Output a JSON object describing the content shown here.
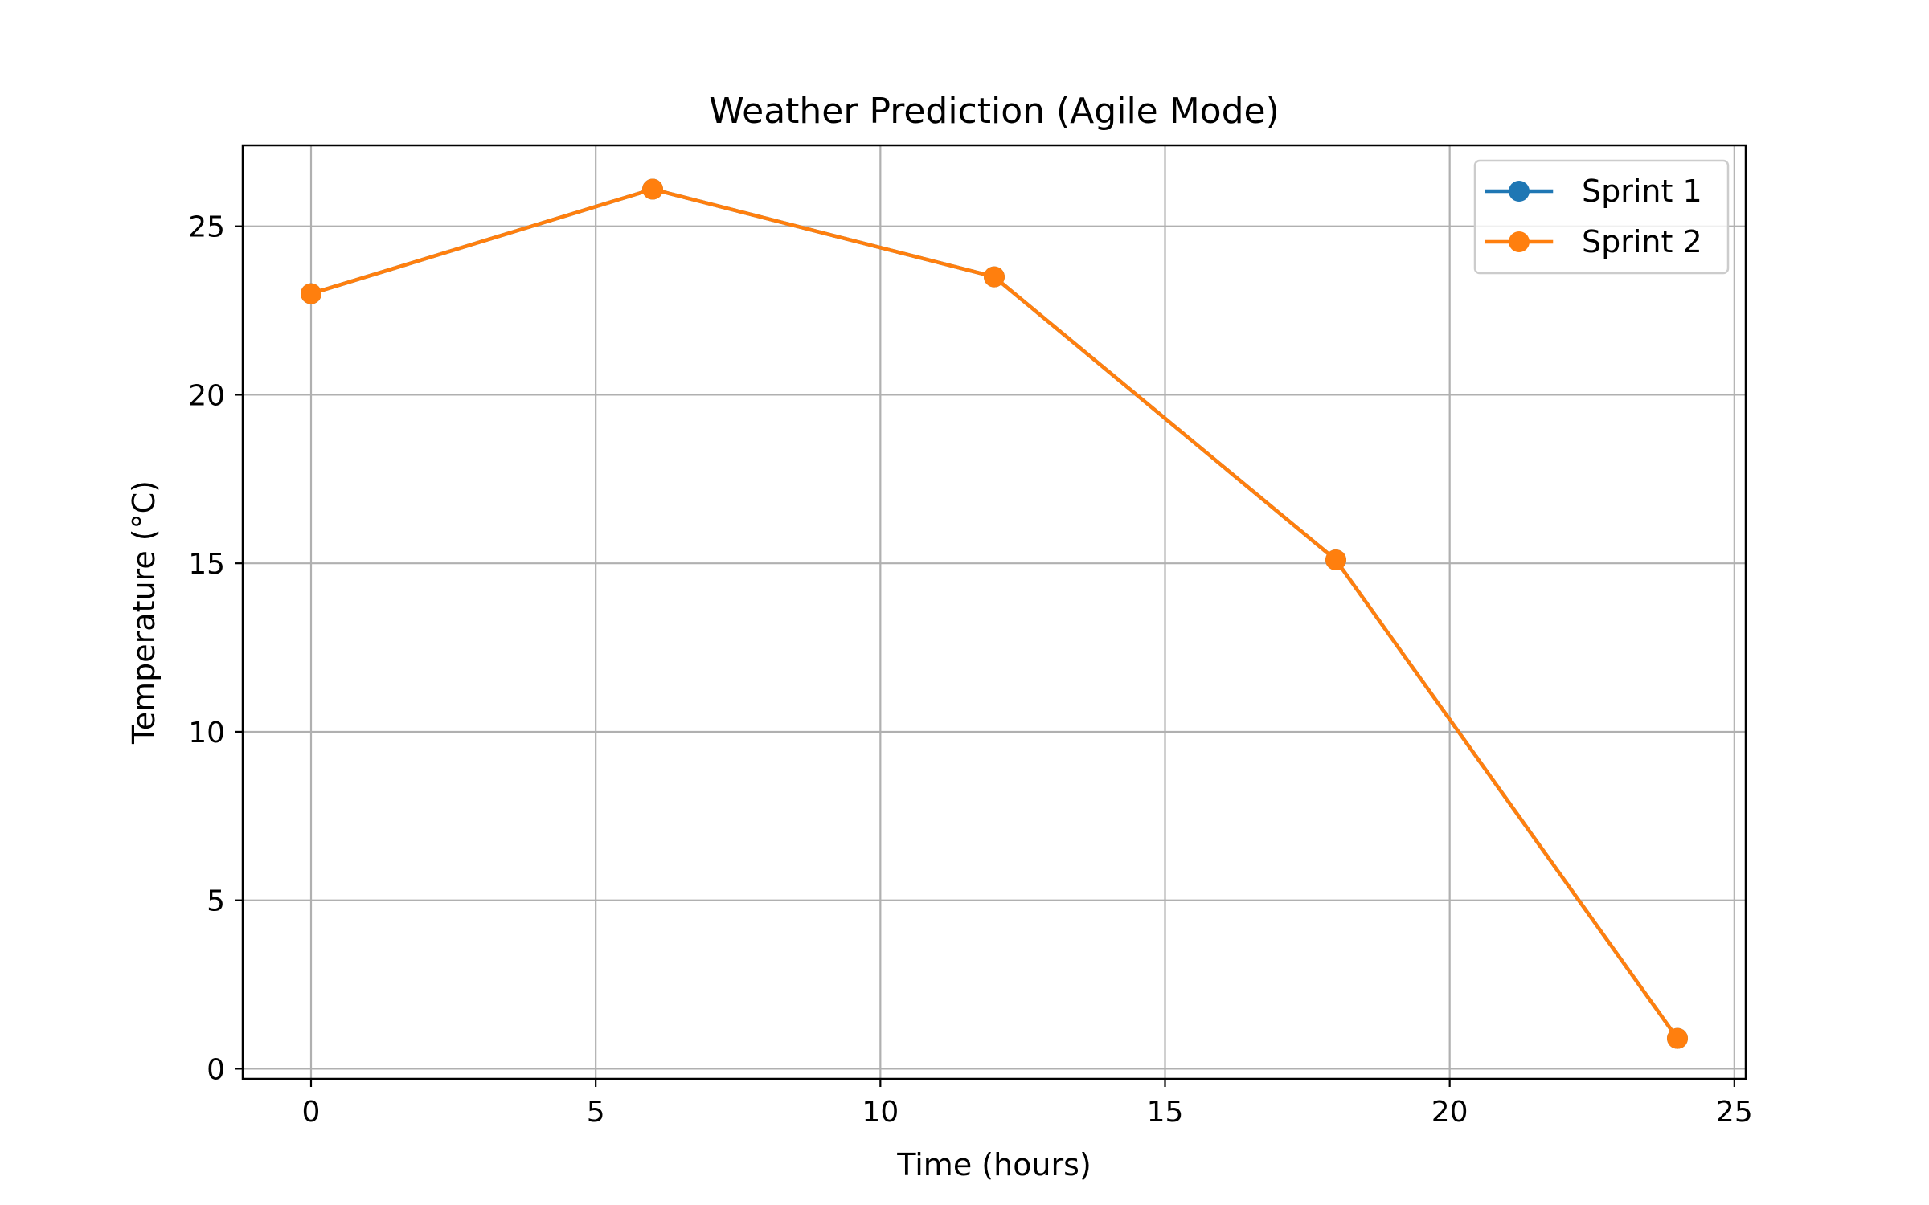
{
  "chart_data": {
    "type": "line",
    "title": "Weather Prediction (Agile Mode)",
    "xlabel": "Time (hours)",
    "ylabel": "Temperature (°C)",
    "xlim": [
      -1.2,
      25.2
    ],
    "ylim": [
      -0.3,
      27.4
    ],
    "xticks": [
      0,
      5,
      10,
      15,
      20,
      25
    ],
    "yticks": [
      0,
      5,
      10,
      15,
      20,
      25
    ],
    "grid": true,
    "legend_position": "top-right",
    "series": [
      {
        "name": "Sprint 1",
        "color": "#1f77b4",
        "marker": "circle",
        "x": [
          0,
          6,
          12,
          18,
          24
        ],
        "y": [
          23.0,
          26.1,
          23.5,
          15.1,
          0.9
        ]
      },
      {
        "name": "Sprint 2",
        "color": "#ff7f0e",
        "marker": "circle",
        "x": [
          0,
          6,
          12,
          18,
          24
        ],
        "y": [
          23.0,
          26.1,
          23.5,
          15.1,
          0.9
        ]
      }
    ]
  }
}
